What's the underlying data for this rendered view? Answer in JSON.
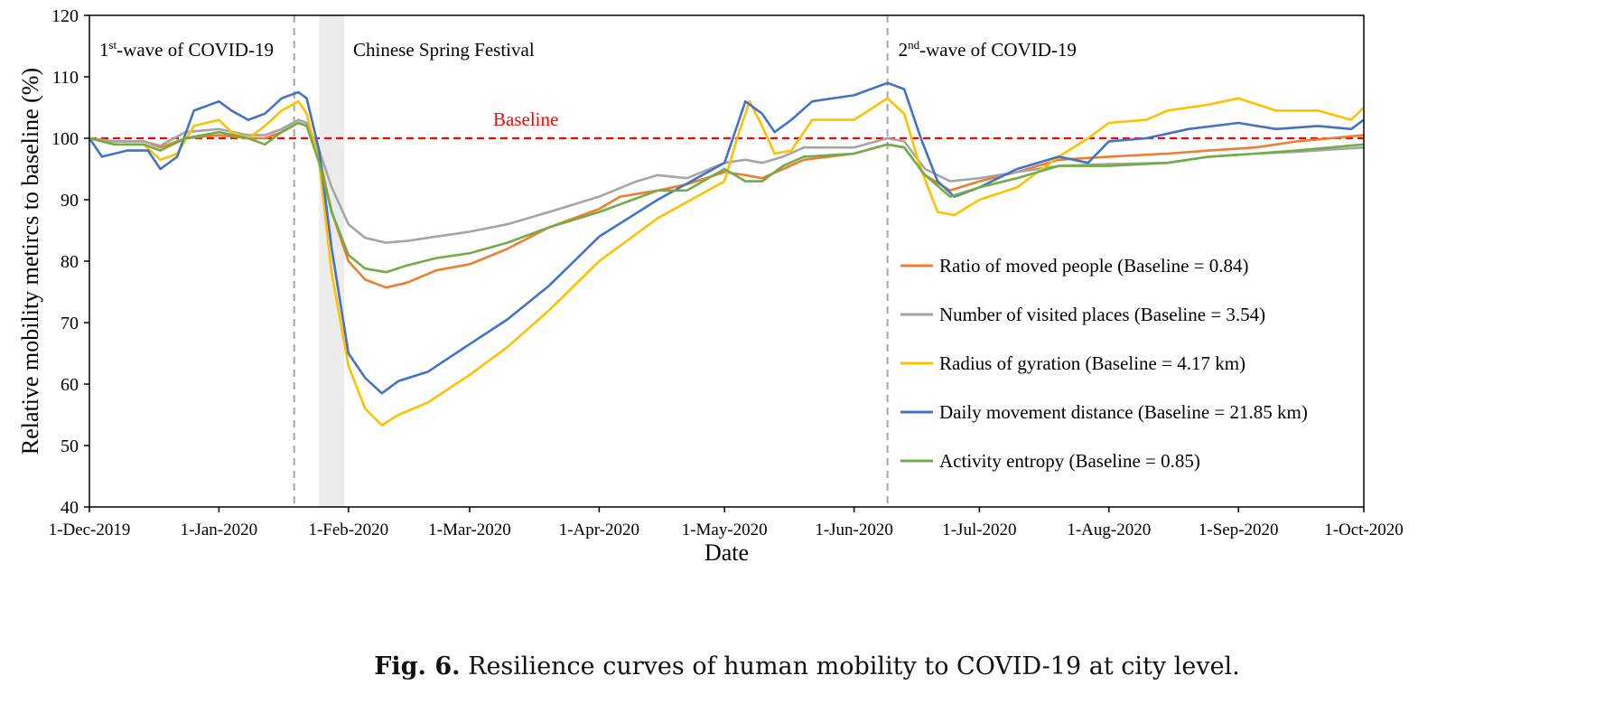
{
  "caption": {
    "label": "Fig. 6.",
    "text": "Resilience curves of human mobility to COVID-19 at city level."
  },
  "chart_data": {
    "type": "line",
    "title": "",
    "xlabel": "Date",
    "ylabel": "Relative mobility metircs to baseline (%)",
    "ylim": [
      40,
      120
    ],
    "yticks": [
      40,
      50,
      60,
      70,
      80,
      90,
      100,
      110,
      120
    ],
    "x_start": "2019-12-01",
    "x_end": "2020-10-01",
    "xticks": [
      {
        "date": "2019-12-01",
        "label": "1-Dec-2019"
      },
      {
        "date": "2020-01-01",
        "label": "1-Jan-2020"
      },
      {
        "date": "2020-02-01",
        "label": "1-Feb-2020"
      },
      {
        "date": "2020-03-01",
        "label": "1-Mar-2020"
      },
      {
        "date": "2020-04-01",
        "label": "1-Apr-2020"
      },
      {
        "date": "2020-05-01",
        "label": "1-May-2020"
      },
      {
        "date": "2020-06-01",
        "label": "1-Jun-2020"
      },
      {
        "date": "2020-07-01",
        "label": "1-Jul-2020"
      },
      {
        "date": "2020-08-01",
        "label": "1-Aug-2020"
      },
      {
        "date": "2020-09-01",
        "label": "1-Sep-2020"
      },
      {
        "date": "2020-10-01",
        "label": "1-Oct-2020"
      }
    ],
    "grid": false,
    "legend_position": "right",
    "baseline": {
      "value": 100,
      "label": "Baseline",
      "color": "#ff0000"
    },
    "annotations": {
      "first_wave": {
        "prefix": "1",
        "sup": "st",
        "text": "-wave of COVID-19",
        "date": "2020-01-19"
      },
      "second_wave": {
        "prefix": "2",
        "sup": "nd",
        "text": "-wave of COVID-19",
        "date": "2020-06-09"
      },
      "festival": {
        "text": "Chinese Spring Festival",
        "start": "2020-01-25",
        "end": "2020-01-31"
      }
    },
    "series": [
      {
        "name": "Ratio of moved people (Baseline = 0.84)",
        "color": "#ed7d31",
        "points": [
          [
            "2019-12-01",
            100
          ],
          [
            "2019-12-07",
            99.5
          ],
          [
            "2019-12-14",
            99.5
          ],
          [
            "2019-12-18",
            98.5
          ],
          [
            "2019-12-24",
            100
          ],
          [
            "2020-01-01",
            100.5
          ],
          [
            "2020-01-08",
            100
          ],
          [
            "2020-01-12",
            100
          ],
          [
            "2020-01-16",
            101
          ],
          [
            "2020-01-20",
            102.5
          ],
          [
            "2020-01-22",
            102
          ],
          [
            "2020-01-25",
            97
          ],
          [
            "2020-01-28",
            88
          ],
          [
            "2020-02-01",
            80
          ],
          [
            "2020-02-05",
            77
          ],
          [
            "2020-02-10",
            75.7
          ],
          [
            "2020-02-15",
            76.5
          ],
          [
            "2020-02-22",
            78.5
          ],
          [
            "2020-03-01",
            79.5
          ],
          [
            "2020-03-10",
            82
          ],
          [
            "2020-03-20",
            85.5
          ],
          [
            "2020-04-01",
            88.5
          ],
          [
            "2020-04-06",
            90.5
          ],
          [
            "2020-04-15",
            91.5
          ],
          [
            "2020-04-22",
            92.5
          ],
          [
            "2020-05-01",
            94.5
          ],
          [
            "2020-05-06",
            94
          ],
          [
            "2020-05-10",
            93.5
          ],
          [
            "2020-05-15",
            95
          ],
          [
            "2020-05-20",
            96.5
          ],
          [
            "2020-06-01",
            97.5
          ],
          [
            "2020-06-09",
            99
          ],
          [
            "2020-06-13",
            98.5
          ],
          [
            "2020-06-18",
            94
          ],
          [
            "2020-06-24",
            91.5
          ],
          [
            "2020-07-01",
            93
          ],
          [
            "2020-07-10",
            94.5
          ],
          [
            "2020-07-20",
            96.5
          ],
          [
            "2020-08-01",
            97
          ],
          [
            "2020-08-15",
            97.5
          ],
          [
            "2020-08-25",
            98
          ],
          [
            "2020-09-05",
            98.5
          ],
          [
            "2020-09-15",
            99.5
          ],
          [
            "2020-10-01",
            100.5
          ]
        ]
      },
      {
        "name": "Number of visited places (Baseline = 3.54)",
        "color": "#a5a5a5",
        "points": [
          [
            "2019-12-01",
            100
          ],
          [
            "2019-12-07",
            99.5
          ],
          [
            "2019-12-14",
            99.5
          ],
          [
            "2019-12-18",
            98.8
          ],
          [
            "2019-12-24",
            101
          ],
          [
            "2020-01-01",
            101.5
          ],
          [
            "2020-01-08",
            100.5
          ],
          [
            "2020-01-12",
            100.5
          ],
          [
            "2020-01-16",
            101.5
          ],
          [
            "2020-01-20",
            103
          ],
          [
            "2020-01-22",
            102.5
          ],
          [
            "2020-01-25",
            98
          ],
          [
            "2020-01-28",
            92
          ],
          [
            "2020-02-01",
            86
          ],
          [
            "2020-02-05",
            83.8
          ],
          [
            "2020-02-10",
            83
          ],
          [
            "2020-02-15",
            83.3
          ],
          [
            "2020-02-22",
            84
          ],
          [
            "2020-03-01",
            84.8
          ],
          [
            "2020-03-10",
            86
          ],
          [
            "2020-03-20",
            88
          ],
          [
            "2020-04-01",
            90.5
          ],
          [
            "2020-04-10",
            93
          ],
          [
            "2020-04-15",
            94
          ],
          [
            "2020-04-22",
            93.5
          ],
          [
            "2020-05-01",
            96
          ],
          [
            "2020-05-06",
            96.5
          ],
          [
            "2020-05-10",
            96
          ],
          [
            "2020-05-15",
            97
          ],
          [
            "2020-05-20",
            98.5
          ],
          [
            "2020-06-01",
            98.5
          ],
          [
            "2020-06-09",
            100
          ],
          [
            "2020-06-13",
            99.5
          ],
          [
            "2020-06-18",
            95
          ],
          [
            "2020-06-24",
            93
          ],
          [
            "2020-07-01",
            93.5
          ],
          [
            "2020-07-10",
            94.5
          ],
          [
            "2020-07-20",
            95.5
          ],
          [
            "2020-08-01",
            95.8
          ],
          [
            "2020-08-15",
            96
          ],
          [
            "2020-08-25",
            97
          ],
          [
            "2020-09-05",
            97.5
          ],
          [
            "2020-09-15",
            97.8
          ],
          [
            "2020-10-01",
            98.5
          ]
        ]
      },
      {
        "name": "Radius of gyration (Baseline = 4.17 km)",
        "color": "#ffc000",
        "points": [
          [
            "2019-12-01",
            100
          ],
          [
            "2019-12-07",
            99
          ],
          [
            "2019-12-14",
            99
          ],
          [
            "2019-12-18",
            96.5
          ],
          [
            "2019-12-22",
            97.5
          ],
          [
            "2019-12-26",
            102
          ],
          [
            "2020-01-01",
            103
          ],
          [
            "2020-01-04",
            101
          ],
          [
            "2020-01-08",
            100
          ],
          [
            "2020-01-12",
            102
          ],
          [
            "2020-01-16",
            104.5
          ],
          [
            "2020-01-20",
            106
          ],
          [
            "2020-01-22",
            104
          ],
          [
            "2020-01-25",
            96
          ],
          [
            "2020-01-28",
            78
          ],
          [
            "2020-02-01",
            63
          ],
          [
            "2020-02-05",
            56
          ],
          [
            "2020-02-09",
            53.3
          ],
          [
            "2020-02-13",
            55
          ],
          [
            "2020-02-20",
            57
          ],
          [
            "2020-03-01",
            61.5
          ],
          [
            "2020-03-10",
            66
          ],
          [
            "2020-03-20",
            72
          ],
          [
            "2020-04-01",
            80
          ],
          [
            "2020-04-15",
            87
          ],
          [
            "2020-05-01",
            93
          ],
          [
            "2020-05-04",
            100
          ],
          [
            "2020-05-07",
            106
          ],
          [
            "2020-05-10",
            102
          ],
          [
            "2020-05-13",
            97.5
          ],
          [
            "2020-05-17",
            98
          ],
          [
            "2020-05-22",
            103
          ],
          [
            "2020-06-01",
            103
          ],
          [
            "2020-06-09",
            106.5
          ],
          [
            "2020-06-13",
            104
          ],
          [
            "2020-06-17",
            95
          ],
          [
            "2020-06-21",
            88
          ],
          [
            "2020-06-25",
            87.5
          ],
          [
            "2020-07-01",
            90
          ],
          [
            "2020-07-10",
            92
          ],
          [
            "2020-07-20",
            97
          ],
          [
            "2020-07-27",
            100
          ],
          [
            "2020-08-01",
            102.5
          ],
          [
            "2020-08-10",
            103
          ],
          [
            "2020-08-15",
            104.5
          ],
          [
            "2020-08-25",
            105.5
          ],
          [
            "2020-09-01",
            106.5
          ],
          [
            "2020-09-10",
            104.5
          ],
          [
            "2020-09-20",
            104.5
          ],
          [
            "2020-09-28",
            103
          ],
          [
            "2020-10-01",
            105
          ]
        ]
      },
      {
        "name": "Daily movement distance (Baseline = 21.85 km)",
        "color": "#4472c4",
        "points": [
          [
            "2019-12-01",
            100
          ],
          [
            "2019-12-04",
            97
          ],
          [
            "2019-12-10",
            98
          ],
          [
            "2019-12-15",
            98
          ],
          [
            "2019-12-18",
            95
          ],
          [
            "2019-12-22",
            97
          ],
          [
            "2019-12-26",
            104.5
          ],
          [
            "2020-01-01",
            106
          ],
          [
            "2020-01-04",
            104.5
          ],
          [
            "2020-01-08",
            103
          ],
          [
            "2020-01-12",
            104
          ],
          [
            "2020-01-16",
            106.5
          ],
          [
            "2020-01-20",
            107.5
          ],
          [
            "2020-01-22",
            106.5
          ],
          [
            "2020-01-25",
            98
          ],
          [
            "2020-01-28",
            82
          ],
          [
            "2020-02-01",
            65
          ],
          [
            "2020-02-05",
            61
          ],
          [
            "2020-02-09",
            58.5
          ],
          [
            "2020-02-13",
            60.5
          ],
          [
            "2020-02-20",
            62
          ],
          [
            "2020-03-01",
            66.5
          ],
          [
            "2020-03-10",
            70.5
          ],
          [
            "2020-03-20",
            76
          ],
          [
            "2020-04-01",
            84
          ],
          [
            "2020-04-15",
            90
          ],
          [
            "2020-05-01",
            96
          ],
          [
            "2020-05-06",
            106
          ],
          [
            "2020-05-10",
            104
          ],
          [
            "2020-05-13",
            101
          ],
          [
            "2020-05-17",
            103
          ],
          [
            "2020-05-22",
            106
          ],
          [
            "2020-06-01",
            107
          ],
          [
            "2020-06-09",
            109
          ],
          [
            "2020-06-13",
            108
          ],
          [
            "2020-06-17",
            100
          ],
          [
            "2020-06-21",
            93
          ],
          [
            "2020-06-25",
            90.5
          ],
          [
            "2020-07-01",
            92
          ],
          [
            "2020-07-10",
            95
          ],
          [
            "2020-07-20",
            97
          ],
          [
            "2020-07-27",
            96
          ],
          [
            "2020-08-01",
            99.5
          ],
          [
            "2020-08-10",
            100
          ],
          [
            "2020-08-20",
            101.5
          ],
          [
            "2020-09-01",
            102.5
          ],
          [
            "2020-09-10",
            101.5
          ],
          [
            "2020-09-20",
            102
          ],
          [
            "2020-09-28",
            101.5
          ],
          [
            "2020-10-01",
            103
          ]
        ]
      },
      {
        "name": "Activity entropy (Baseline = 0.85)",
        "color": "#70ad47",
        "points": [
          [
            "2019-12-01",
            100
          ],
          [
            "2019-12-07",
            99
          ],
          [
            "2019-12-14",
            99
          ],
          [
            "2019-12-18",
            98
          ],
          [
            "2019-12-24",
            100
          ],
          [
            "2020-01-01",
            101
          ],
          [
            "2020-01-08",
            100
          ],
          [
            "2020-01-12",
            99
          ],
          [
            "2020-01-16",
            101
          ],
          [
            "2020-01-20",
            102.5
          ],
          [
            "2020-01-22",
            102
          ],
          [
            "2020-01-25",
            96
          ],
          [
            "2020-01-28",
            88
          ],
          [
            "2020-02-01",
            81
          ],
          [
            "2020-02-05",
            78.8
          ],
          [
            "2020-02-10",
            78.2
          ],
          [
            "2020-02-15",
            79.3
          ],
          [
            "2020-02-22",
            80.5
          ],
          [
            "2020-03-01",
            81.3
          ],
          [
            "2020-03-10",
            83
          ],
          [
            "2020-03-20",
            85.5
          ],
          [
            "2020-04-01",
            88
          ],
          [
            "2020-04-15",
            91.5
          ],
          [
            "2020-04-22",
            91.5
          ],
          [
            "2020-05-01",
            95
          ],
          [
            "2020-05-06",
            93
          ],
          [
            "2020-05-10",
            93
          ],
          [
            "2020-05-15",
            95.5
          ],
          [
            "2020-05-20",
            97
          ],
          [
            "2020-06-01",
            97.5
          ],
          [
            "2020-06-09",
            99
          ],
          [
            "2020-06-13",
            98.5
          ],
          [
            "2020-06-18",
            94
          ],
          [
            "2020-06-24",
            90.5
          ],
          [
            "2020-07-01",
            92
          ],
          [
            "2020-07-10",
            93.5
          ],
          [
            "2020-07-20",
            95.5
          ],
          [
            "2020-08-01",
            95.5
          ],
          [
            "2020-08-15",
            96
          ],
          [
            "2020-08-25",
            97
          ],
          [
            "2020-09-05",
            97.5
          ],
          [
            "2020-09-15",
            98
          ],
          [
            "2020-10-01",
            99
          ]
        ]
      }
    ]
  }
}
